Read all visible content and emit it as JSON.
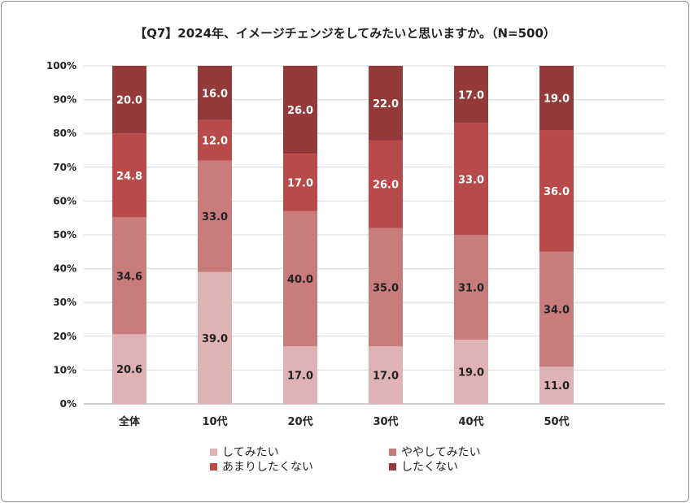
{
  "chart_data": {
    "type": "bar",
    "stacked": true,
    "percent": true,
    "title": "【Q7】2024年、イメージチェンジをしてみたいと思いますか。（N=500）",
    "categories": [
      "全体",
      "10代",
      "20代",
      "30代",
      "40代",
      "50代"
    ],
    "ylim": [
      0,
      100
    ],
    "yticks": [
      "0%",
      "10%",
      "20%",
      "30%",
      "40%",
      "50%",
      "60%",
      "70%",
      "80%",
      "90%",
      "100%"
    ],
    "grid": true,
    "legend_position": "bottom",
    "series": [
      {
        "name": "してみたい",
        "color": "#dfb3b3",
        "label_color": "#222222",
        "values": [
          20.6,
          39.0,
          17.0,
          17.0,
          19.0,
          11.0
        ],
        "labels": [
          "20.6",
          "39.0",
          "17.0",
          "17.0",
          "19.0",
          "11.0"
        ]
      },
      {
        "name": "ややしてみたい",
        "color": "#c87c7c",
        "label_color": "#222222",
        "values": [
          34.6,
          33.0,
          40.0,
          35.0,
          31.0,
          34.0
        ],
        "labels": [
          "34.6",
          "33.0",
          "40.0",
          "35.0",
          "31.0",
          "34.0"
        ]
      },
      {
        "name": "あまりしたくない",
        "color": "#b84a4a",
        "label_color": "#ffffff",
        "values": [
          24.8,
          12.0,
          17.0,
          26.0,
          33.0,
          36.0
        ],
        "labels": [
          "24.8",
          "12.0",
          "17.0",
          "26.0",
          "33.0",
          "36.0"
        ]
      },
      {
        "name": "したくない",
        "color": "#953a3a",
        "label_color": "#ffffff",
        "values": [
          20.0,
          16.0,
          26.0,
          22.0,
          17.0,
          19.0
        ],
        "labels": [
          "20.0",
          "16.0",
          "26.0",
          "22.0",
          "17.0",
          "19.0"
        ]
      }
    ]
  }
}
